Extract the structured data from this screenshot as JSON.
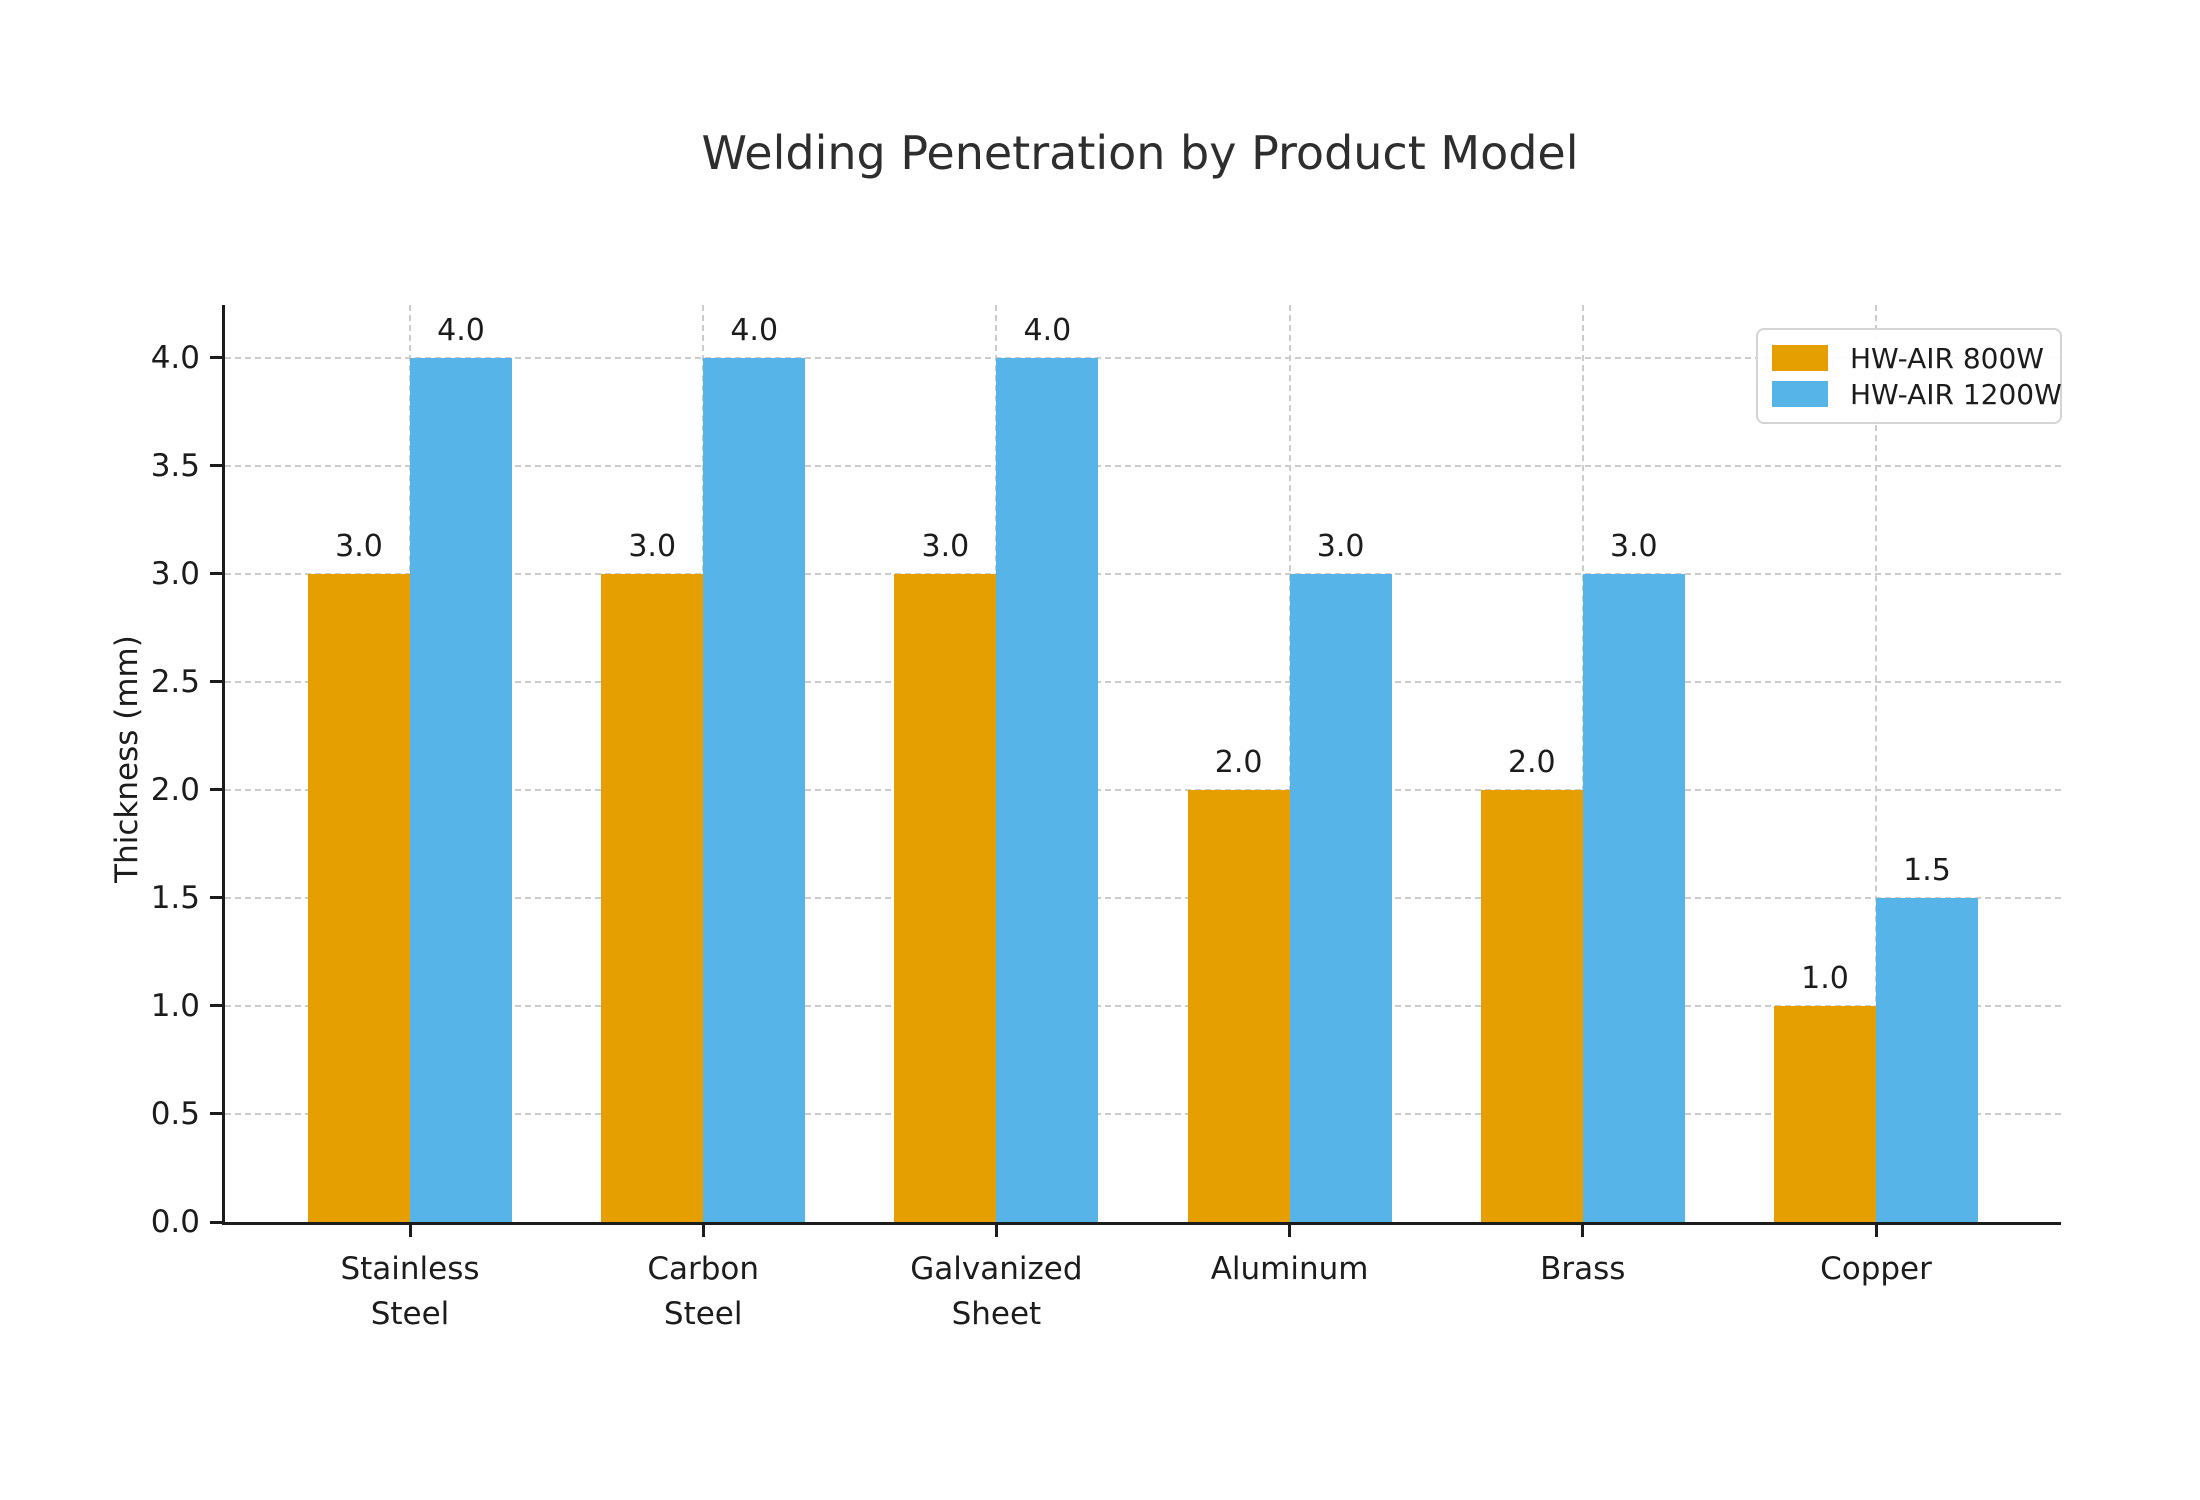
{
  "title": "Welding Penetration by Product Model",
  "colors": {
    "series_800w": "#E69F00",
    "series_1200w": "#56B4E9",
    "axis": "#1c1c1c",
    "grid": "#cccccc",
    "text": "#2e2e2e",
    "legend_border": "#d4d4d4",
    "background": "#ffffff"
  },
  "chart_data": {
    "type": "bar",
    "title": "Welding Penetration by Product Model",
    "xlabel": "",
    "ylabel": "Thickness (mm)",
    "categories": [
      "Stainless\nSteel",
      "Carbon\nSteel",
      "Galvanized\nSheet",
      "Aluminum",
      "Brass",
      "Copper"
    ],
    "series": [
      {
        "name": "HW-AIR 800W",
        "color": "#E69F00",
        "values": [
          3.0,
          3.0,
          3.0,
          2.0,
          2.0,
          1.0
        ]
      },
      {
        "name": "HW-AIR 1200W",
        "color": "#56B4E9",
        "values": [
          4.0,
          4.0,
          4.0,
          3.0,
          3.0,
          1.5
        ]
      }
    ],
    "ylim": [
      0,
      4.245
    ],
    "yticks": [
      0.0,
      0.5,
      1.0,
      1.5,
      2.0,
      2.5,
      3.0,
      3.5,
      4.0
    ],
    "bar_value_labels": true,
    "grid": "both-dashed",
    "legend_position": "upper right"
  },
  "legend": {
    "items": [
      {
        "label": "HW-AIR 800W"
      },
      {
        "label": "HW-AIR 1200W"
      }
    ]
  }
}
